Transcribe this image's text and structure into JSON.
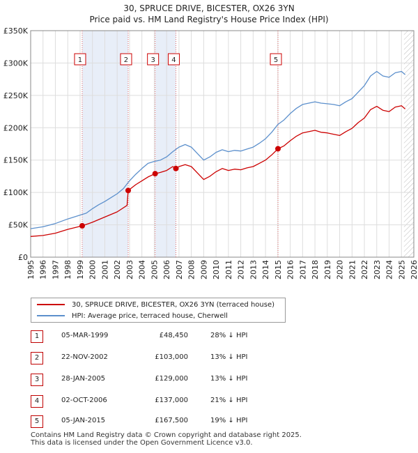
{
  "title_line1": "30, SPRUCE DRIVE, BICESTER, OX26 3YN",
  "title_line2": "Price paid vs. HM Land Registry's House Price Index (HPI)",
  "legend": {
    "red_label": "30, SPRUCE DRIVE, BICESTER, OX26 3YN (terraced house)",
    "blue_label": "HPI: Average price, terraced house, Cherwell"
  },
  "colors": {
    "red": "#cc0000",
    "blue": "#5b8fcc",
    "band": "#e8eef8",
    "grid": "#dddddd"
  },
  "transactions": [
    {
      "num": "1",
      "date": "05-MAR-1999",
      "price": "£48,450",
      "hpi": "28% ↓ HPI"
    },
    {
      "num": "2",
      "date": "22-NOV-2002",
      "price": "£103,000",
      "hpi": "13% ↓ HPI"
    },
    {
      "num": "3",
      "date": "28-JAN-2005",
      "price": "£129,000",
      "hpi": "13% ↓ HPI"
    },
    {
      "num": "4",
      "date": "02-OCT-2006",
      "price": "£137,000",
      "hpi": "21% ↓ HPI"
    },
    {
      "num": "5",
      "date": "05-JAN-2015",
      "price": "£167,500",
      "hpi": "19% ↓ HPI"
    }
  ],
  "footer": {
    "line1": "Contains HM Land Registry data © Crown copyright and database right 2025.",
    "line2": "This data is licensed under the Open Government Licence v3.0."
  },
  "chart_data": {
    "type": "line",
    "title": "30, SPRUCE DRIVE, BICESTER, OX26 3YN — Price paid vs. HM Land Registry's House Price Index (HPI)",
    "xlim": [
      1995,
      2026
    ],
    "ylim": [
      0,
      350000
    ],
    "y_ticks": [
      0,
      50000,
      100000,
      150000,
      200000,
      250000,
      300000,
      350000
    ],
    "y_tick_labels": [
      "£0",
      "£50K",
      "£100K",
      "£150K",
      "£200K",
      "£250K",
      "£300K",
      "£350K"
    ],
    "x_ticks": [
      1995,
      1996,
      1997,
      1998,
      1999,
      2000,
      2001,
      2002,
      2003,
      2004,
      2005,
      2006,
      2007,
      2008,
      2009,
      2010,
      2011,
      2012,
      2013,
      2014,
      2015,
      2016,
      2017,
      2018,
      2019,
      2020,
      2021,
      2022,
      2023,
      2024,
      2025,
      2026
    ],
    "grid": true,
    "shaded_bands": [
      [
        1999.17,
        2002.89
      ],
      [
        2005.07,
        2006.75
      ]
    ],
    "hatched_from": 2025.2,
    "marker_lines": [
      {
        "label": "1",
        "x": 1999.17
      },
      {
        "label": "2",
        "x": 2002.89
      },
      {
        "label": "3",
        "x": 2005.07
      },
      {
        "label": "4",
        "x": 2006.75
      },
      {
        "label": "5",
        "x": 2015.01
      }
    ],
    "sale_points": [
      {
        "x": 1999.17,
        "y": 48450
      },
      {
        "x": 2002.89,
        "y": 103000
      },
      {
        "x": 2005.07,
        "y": 129000
      },
      {
        "x": 2006.75,
        "y": 137000
      },
      {
        "x": 2015.01,
        "y": 167500
      }
    ],
    "series": [
      {
        "name": "HPI: Average price, terraced house, Cherwell",
        "color": "#5b8fcc",
        "points": [
          [
            1995.0,
            44000
          ],
          [
            1996.0,
            47000
          ],
          [
            1997.0,
            52000
          ],
          [
            1998.0,
            59000
          ],
          [
            1999.0,
            65000
          ],
          [
            1999.5,
            68000
          ],
          [
            2000.0,
            75000
          ],
          [
            2000.5,
            81000
          ],
          [
            2001.0,
            86000
          ],
          [
            2001.5,
            92000
          ],
          [
            2002.0,
            98000
          ],
          [
            2002.5,
            106000
          ],
          [
            2003.0,
            118000
          ],
          [
            2003.5,
            128000
          ],
          [
            2004.0,
            137000
          ],
          [
            2004.5,
            145000
          ],
          [
            2005.0,
            148000
          ],
          [
            2005.5,
            150000
          ],
          [
            2006.0,
            155000
          ],
          [
            2006.5,
            163000
          ],
          [
            2007.0,
            170000
          ],
          [
            2007.5,
            174000
          ],
          [
            2008.0,
            170000
          ],
          [
            2008.5,
            160000
          ],
          [
            2009.0,
            150000
          ],
          [
            2009.5,
            155000
          ],
          [
            2010.0,
            162000
          ],
          [
            2010.5,
            166000
          ],
          [
            2011.0,
            163000
          ],
          [
            2011.5,
            165000
          ],
          [
            2012.0,
            164000
          ],
          [
            2012.5,
            167000
          ],
          [
            2013.0,
            170000
          ],
          [
            2013.5,
            176000
          ],
          [
            2014.0,
            183000
          ],
          [
            2014.5,
            193000
          ],
          [
            2015.0,
            205000
          ],
          [
            2015.5,
            212000
          ],
          [
            2016.0,
            222000
          ],
          [
            2016.5,
            230000
          ],
          [
            2017.0,
            236000
          ],
          [
            2017.5,
            238000
          ],
          [
            2018.0,
            240000
          ],
          [
            2018.5,
            238000
          ],
          [
            2019.0,
            237000
          ],
          [
            2019.5,
            236000
          ],
          [
            2020.0,
            234000
          ],
          [
            2020.5,
            240000
          ],
          [
            2021.0,
            245000
          ],
          [
            2021.5,
            255000
          ],
          [
            2022.0,
            265000
          ],
          [
            2022.5,
            280000
          ],
          [
            2023.0,
            287000
          ],
          [
            2023.5,
            280000
          ],
          [
            2024.0,
            278000
          ],
          [
            2024.5,
            285000
          ],
          [
            2025.0,
            287000
          ],
          [
            2025.3,
            282000
          ]
        ]
      },
      {
        "name": "30, SPRUCE DRIVE, BICESTER, OX26 3YN (terraced house)",
        "color": "#cc0000",
        "points": [
          [
            1995.0,
            32000
          ],
          [
            1996.0,
            33500
          ],
          [
            1997.0,
            37000
          ],
          [
            1998.0,
            43000
          ],
          [
            1999.17,
            48450
          ],
          [
            2000.0,
            54000
          ],
          [
            2001.0,
            62000
          ],
          [
            2002.0,
            70000
          ],
          [
            2002.8,
            80000
          ],
          [
            2002.89,
            103000
          ],
          [
            2003.5,
            112000
          ],
          [
            2004.0,
            118000
          ],
          [
            2004.5,
            124000
          ],
          [
            2005.07,
            129000
          ],
          [
            2005.5,
            131000
          ],
          [
            2006.0,
            134000
          ],
          [
            2006.5,
            140000
          ],
          [
            2006.75,
            137000
          ],
          [
            2007.0,
            140000
          ],
          [
            2007.5,
            143000
          ],
          [
            2008.0,
            140000
          ],
          [
            2008.5,
            130000
          ],
          [
            2009.0,
            120000
          ],
          [
            2009.5,
            125000
          ],
          [
            2010.0,
            132000
          ],
          [
            2010.5,
            137000
          ],
          [
            2011.0,
            134000
          ],
          [
            2011.5,
            136000
          ],
          [
            2012.0,
            135000
          ],
          [
            2012.5,
            138000
          ],
          [
            2013.0,
            140000
          ],
          [
            2013.5,
            145000
          ],
          [
            2014.0,
            150000
          ],
          [
            2014.5,
            158000
          ],
          [
            2015.01,
            167500
          ],
          [
            2015.5,
            172000
          ],
          [
            2016.0,
            180000
          ],
          [
            2016.5,
            187000
          ],
          [
            2017.0,
            192000
          ],
          [
            2017.5,
            194000
          ],
          [
            2018.0,
            196000
          ],
          [
            2018.5,
            193000
          ],
          [
            2019.0,
            192000
          ],
          [
            2019.5,
            190000
          ],
          [
            2020.0,
            188000
          ],
          [
            2020.5,
            194000
          ],
          [
            2021.0,
            199000
          ],
          [
            2021.5,
            208000
          ],
          [
            2022.0,
            215000
          ],
          [
            2022.5,
            228000
          ],
          [
            2023.0,
            233000
          ],
          [
            2023.5,
            227000
          ],
          [
            2024.0,
            225000
          ],
          [
            2024.5,
            232000
          ],
          [
            2025.0,
            234000
          ],
          [
            2025.3,
            229000
          ]
        ]
      }
    ]
  }
}
